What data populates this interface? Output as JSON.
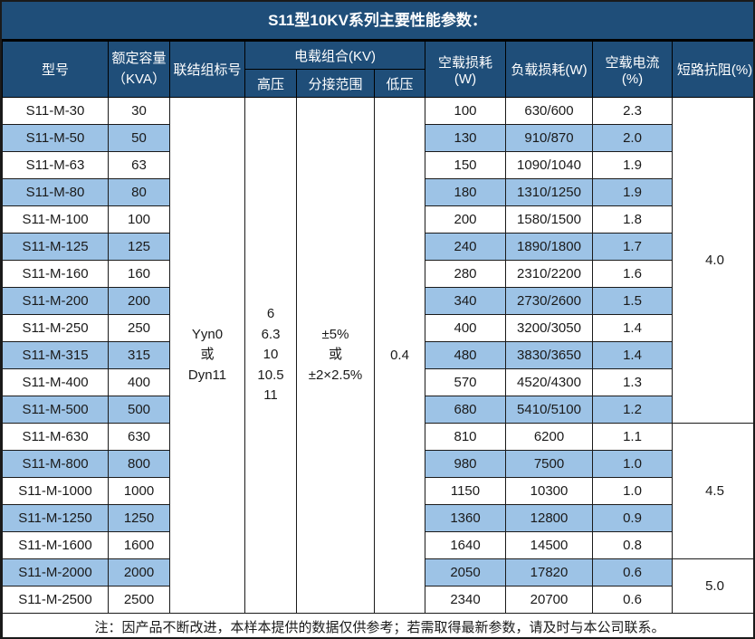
{
  "title": "S11型10KV系列主要性能参数：",
  "columns": {
    "model": "型号",
    "capacity": "额定容量\n（KVA）",
    "connection": "联结组标号",
    "voltage_combo": "电载组合(KV)",
    "high_voltage": "高压",
    "tap_range": "分接范围",
    "low_voltage": "低压",
    "no_load_loss": "空载损耗(W)",
    "load_loss": "负载损耗(W)",
    "no_load_current": "空载电流(%)",
    "impedance": "短路抗阻(%)"
  },
  "merged": {
    "connection_value": "Yyn0\n或\nDyn11",
    "high_voltage_value": "6\n6.3\n10\n10.5\n11",
    "tap_range_value": "±5%\n或\n±2×2.5%",
    "low_voltage_value": "0.4"
  },
  "impedance_groups": [
    {
      "value": "4.0",
      "rows": 12
    },
    {
      "value": "4.5",
      "rows": 5
    },
    {
      "value": "5.0",
      "rows": 2
    }
  ],
  "rows": [
    {
      "model": "S11-M-30",
      "capacity": "30",
      "no_load_loss": "100",
      "load_loss": "630/600",
      "no_load_current": "2.3"
    },
    {
      "model": "S11-M-50",
      "capacity": "50",
      "no_load_loss": "130",
      "load_loss": "910/870",
      "no_load_current": "2.0"
    },
    {
      "model": "S11-M-63",
      "capacity": "63",
      "no_load_loss": "150",
      "load_loss": "1090/1040",
      "no_load_current": "1.9"
    },
    {
      "model": "S11-M-80",
      "capacity": "80",
      "no_load_loss": "180",
      "load_loss": "1310/1250",
      "no_load_current": "1.9"
    },
    {
      "model": "S11-M-100",
      "capacity": "100",
      "no_load_loss": "200",
      "load_loss": "1580/1500",
      "no_load_current": "1.8"
    },
    {
      "model": "S11-M-125",
      "capacity": "125",
      "no_load_loss": "240",
      "load_loss": "1890/1800",
      "no_load_current": "1.7"
    },
    {
      "model": "S11-M-160",
      "capacity": "160",
      "no_load_loss": "280",
      "load_loss": "2310/2200",
      "no_load_current": "1.6"
    },
    {
      "model": "S11-M-200",
      "capacity": "200",
      "no_load_loss": "340",
      "load_loss": "2730/2600",
      "no_load_current": "1.5"
    },
    {
      "model": "S11-M-250",
      "capacity": "250",
      "no_load_loss": "400",
      "load_loss": "3200/3050",
      "no_load_current": "1.4"
    },
    {
      "model": "S11-M-315",
      "capacity": "315",
      "no_load_loss": "480",
      "load_loss": "3830/3650",
      "no_load_current": "1.4"
    },
    {
      "model": "S11-M-400",
      "capacity": "400",
      "no_load_loss": "570",
      "load_loss": "4520/4300",
      "no_load_current": "1.3"
    },
    {
      "model": "S11-M-500",
      "capacity": "500",
      "no_load_loss": "680",
      "load_loss": "5410/5100",
      "no_load_current": "1.2"
    },
    {
      "model": "S11-M-630",
      "capacity": "630",
      "no_load_loss": "810",
      "load_loss": "6200",
      "no_load_current": "1.1"
    },
    {
      "model": "S11-M-800",
      "capacity": "800",
      "no_load_loss": "980",
      "load_loss": "7500",
      "no_load_current": "1.0"
    },
    {
      "model": "S11-M-1000",
      "capacity": "1000",
      "no_load_loss": "1150",
      "load_loss": "10300",
      "no_load_current": "1.0"
    },
    {
      "model": "S11-M-1250",
      "capacity": "1250",
      "no_load_loss": "1360",
      "load_loss": "12800",
      "no_load_current": "0.9"
    },
    {
      "model": "S11-M-1600",
      "capacity": "1600",
      "no_load_loss": "1640",
      "load_loss": "14500",
      "no_load_current": "0.8"
    },
    {
      "model": "S11-M-2000",
      "capacity": "2000",
      "no_load_loss": "2050",
      "load_loss": "17820",
      "no_load_current": "0.6"
    },
    {
      "model": "S11-M-2500",
      "capacity": "2500",
      "no_load_loss": "2340",
      "load_loss": "20700",
      "no_load_current": "0.6"
    }
  ],
  "note": "注：因产品不断改进，本样本提供的数据仅供参考；若需取得最新参数，请及时与本公司联系。",
  "colors": {
    "header_bg": "#1F4E79",
    "row_alt_bg": "#9DC3E6",
    "row_bg": "#FFFFFF",
    "border": "#1A1A1A",
    "header_text": "#FFFFFF",
    "body_text": "#1A1A1A"
  }
}
